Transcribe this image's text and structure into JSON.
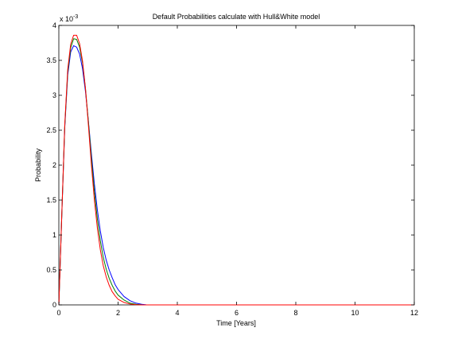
{
  "chart_data": {
    "type": "line",
    "title": "Default Probabilities calculate with Hull&White model",
    "xlabel": "Time [Years]",
    "ylabel": "Probability",
    "xlim": [
      0,
      12
    ],
    "ylim": [
      0,
      0.004
    ],
    "y_scale_multiplier": "x 10",
    "y_scale_exponent": "-3",
    "x_ticks": [
      "0",
      "2",
      "4",
      "6",
      "8",
      "10",
      "12"
    ],
    "y_ticks": [
      "0",
      "0.5",
      "1",
      "1.5",
      "2",
      "2.5",
      "3",
      "3.5",
      "4"
    ],
    "grid": false,
    "legend": "none",
    "series": [
      {
        "color": "#0000ff",
        "x": [
          0,
          0.1,
          0.2,
          0.3,
          0.4,
          0.5,
          0.6,
          0.7,
          0.8,
          0.9,
          1.0,
          1.1,
          1.2,
          1.3,
          1.4,
          1.5,
          1.6,
          1.7,
          1.8,
          1.9,
          2.0,
          2.2,
          2.4,
          2.6,
          2.8,
          2.95,
          3.2,
          4,
          6,
          8,
          10,
          12
        ],
        "y": [
          0,
          0.00129,
          0.00254,
          0.00329,
          0.00362,
          0.00371,
          0.00369,
          0.00359,
          0.00338,
          0.00305,
          0.00262,
          0.00216,
          0.00173,
          0.00136,
          0.00106,
          0.00082,
          0.00064,
          0.0005,
          0.00039,
          0.00029,
          0.00022,
          0.00012,
          6e-05,
          2.5e-05,
          8e-06,
          2e-06,
          0,
          0,
          0,
          0,
          0,
          0
        ]
      },
      {
        "color": "#008000",
        "x": [
          0,
          0.1,
          0.2,
          0.3,
          0.4,
          0.5,
          0.6,
          0.7,
          0.8,
          0.9,
          1.0,
          1.1,
          1.2,
          1.3,
          1.4,
          1.5,
          1.6,
          1.7,
          1.8,
          1.9,
          2.0,
          2.2,
          2.4,
          2.6,
          2.8,
          3.0,
          4,
          6,
          8,
          10,
          12
        ],
        "y": [
          0,
          0.00129,
          0.00256,
          0.00333,
          0.00368,
          0.00381,
          0.0038,
          0.00369,
          0.00346,
          0.00309,
          0.00261,
          0.00209,
          0.00162,
          0.00123,
          0.00092,
          0.00068,
          0.00051,
          0.00038,
          0.00028,
          0.0002,
          0.00014,
          7e-05,
          2.5e-05,
          8e-06,
          2e-06,
          0,
          0,
          0,
          0,
          0,
          0
        ]
      },
      {
        "color": "#ff0000",
        "x": [
          0,
          0.1,
          0.2,
          0.3,
          0.4,
          0.5,
          0.6,
          0.7,
          0.8,
          0.9,
          1.0,
          1.1,
          1.2,
          1.3,
          1.4,
          1.5,
          1.6,
          1.7,
          1.8,
          1.9,
          2.0,
          2.2,
          2.4,
          2.6,
          2.8,
          3.0,
          4,
          6,
          8,
          10,
          12
        ],
        "y": [
          0,
          0.0013,
          0.00258,
          0.00337,
          0.00373,
          0.00386,
          0.00386,
          0.00374,
          0.00349,
          0.00309,
          0.00256,
          0.002,
          0.0015,
          0.0011,
          0.00079,
          0.00056,
          0.0004,
          0.00028,
          0.00019,
          0.00013,
          8e-05,
          3.5e-05,
          1.2e-05,
          3e-06,
          0,
          0,
          0,
          0,
          0,
          0,
          0
        ]
      }
    ]
  }
}
